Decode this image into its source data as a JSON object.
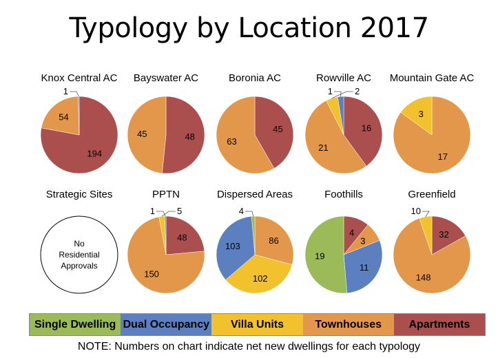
{
  "chart_data": {
    "type": "pie",
    "title": "Typology by Location 2017",
    "legend_position": "bottom",
    "categories": [
      "Single Dwelling",
      "Dual Occupancy",
      "Villa Units",
      "Townhouses",
      "Apartments"
    ],
    "colors": {
      "Single Dwelling": "#9BBB59",
      "Dual Occupancy": "#5B7FBF",
      "Villa Units": "#F2C12E",
      "Townhouses": "#E3974A",
      "Apartments": "#AB4F4E"
    },
    "slice_order_clockwise": [
      "Apartments",
      "Townhouses",
      "Villa Units",
      "Dual Occupancy",
      "Single Dwelling"
    ],
    "pies": [
      {
        "name": "Knox Central AC",
        "values": {
          "Apartments": 194,
          "Townhouses": 54,
          "Dual Occupancy": 1
        }
      },
      {
        "name": "Bayswater AC",
        "values": {
          "Apartments": 48,
          "Townhouses": 45
        }
      },
      {
        "name": "Boronia AC",
        "values": {
          "Apartments": 45,
          "Townhouses": 63
        }
      },
      {
        "name": "Rowville AC",
        "values": {
          "Apartments": 16,
          "Townhouses": 21,
          "Villa Units": 2,
          "Dual Occupancy": 1
        }
      },
      {
        "name": "Mountain Gate AC",
        "values": {
          "Townhouses": 17,
          "Villa Units": 3
        }
      },
      {
        "name": "Strategic Sites",
        "values": {},
        "empty_text": [
          "No",
          "Residential",
          "Approvals"
        ]
      },
      {
        "name": "PPTN",
        "values": {
          "Apartments": 48,
          "Townhouses": 150,
          "Villa Units": 5,
          "Dual Occupancy": 1
        }
      },
      {
        "name": "Dispersed Areas",
        "values": {
          "Townhouses": 86,
          "Villa Units": 102,
          "Dual Occupancy": 103,
          "Single Dwelling": 4
        }
      },
      {
        "name": "Foothills",
        "values": {
          "Apartments": 4,
          "Townhouses": 3,
          "Dual Occupancy": 11,
          "Single Dwelling": 19
        }
      },
      {
        "name": "Greenfield",
        "values": {
          "Apartments": 32,
          "Townhouses": 148,
          "Villa Units": 10
        }
      }
    ],
    "note": "NOTE: Numbers on chart indicate net new dwellings for each typology"
  }
}
